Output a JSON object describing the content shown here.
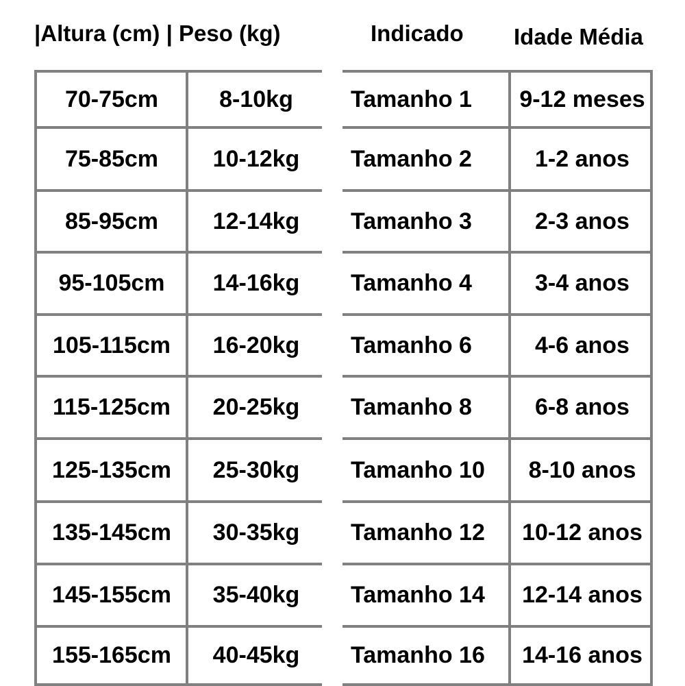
{
  "headers": {
    "altura_peso": "|Altura (cm) | Peso (kg)",
    "indicado": "Indicado",
    "idade": "Idade Média"
  },
  "rows": [
    {
      "altura": "70-75cm",
      "peso": "8-10kg",
      "tamanho": "Tamanho 1",
      "idade": "9-12 meses"
    },
    {
      "altura": "75-85cm",
      "peso": "10-12kg",
      "tamanho": "Tamanho 2",
      "idade": "1-2 anos"
    },
    {
      "altura": "85-95cm",
      "peso": "12-14kg",
      "tamanho": "Tamanho 3",
      "idade": "2-3 anos"
    },
    {
      "altura": "95-105cm",
      "peso": "14-16kg",
      "tamanho": "Tamanho 4",
      "idade": "3-4 anos"
    },
    {
      "altura": "105-115cm",
      "peso": "16-20kg",
      "tamanho": "Tamanho 6",
      "idade": "4-6 anos"
    },
    {
      "altura": "115-125cm",
      "peso": "20-25kg",
      "tamanho": "Tamanho 8",
      "idade": "6-8 anos"
    },
    {
      "altura": "125-135cm",
      "peso": "25-30kg",
      "tamanho": "Tamanho 10",
      "idade": "8-10 anos"
    },
    {
      "altura": "135-145cm",
      "peso": "30-35kg",
      "tamanho": "Tamanho 12",
      "idade": "10-12 anos"
    },
    {
      "altura": "145-155cm",
      "peso": "35-40kg",
      "tamanho": "Tamanho 14",
      "idade": "12-14 anos"
    },
    {
      "altura": "155-165cm",
      "peso": "40-45kg",
      "tamanho": "Tamanho 16",
      "idade": "14-16 anos"
    }
  ],
  "colors": {
    "grid": "#808080",
    "text": "#000000"
  }
}
